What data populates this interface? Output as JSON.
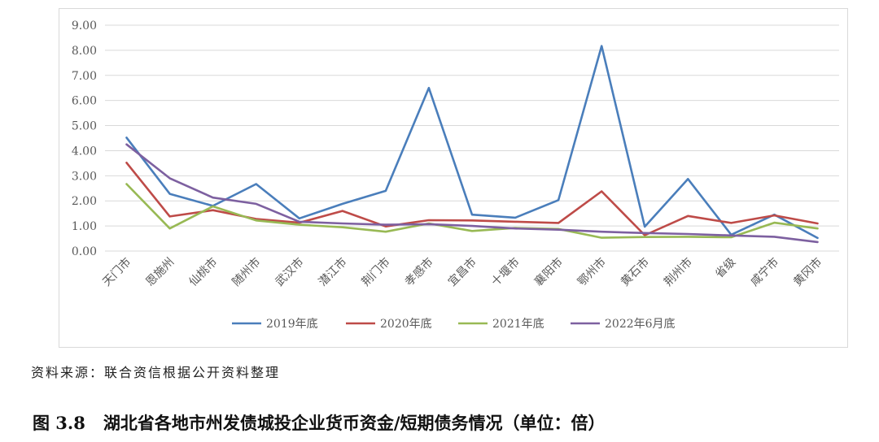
{
  "source_note": "资料来源：联合资信根据公开资料整理",
  "caption": {
    "number": "图 3.8",
    "text": "湖北省各地市州发债城投企业货币资金/短期债务情况（单位：倍）"
  },
  "chart_data": {
    "type": "line",
    "title": "",
    "xlabel": "",
    "ylabel": "",
    "ylim": [
      0,
      9
    ],
    "y_ticks": [
      "0.00",
      "1.00",
      "2.00",
      "3.00",
      "4.00",
      "5.00",
      "6.00",
      "7.00",
      "8.00",
      "9.00"
    ],
    "grid": true,
    "legend_position": "bottom",
    "categories": [
      "天门市",
      "恩施州",
      "仙桃市",
      "随州市",
      "武汉市",
      "潜江市",
      "荆门市",
      "孝感市",
      "宜昌市",
      "十堰市",
      "襄阳市",
      "鄂州市",
      "黄石市",
      "荆州市",
      "省级",
      "咸宁市",
      "黄冈市"
    ],
    "series": [
      {
        "name": "2019年底",
        "color": "#4a7ebb",
        "values": [
          4.52,
          2.28,
          1.8,
          2.67,
          1.3,
          1.88,
          2.4,
          6.5,
          1.45,
          1.33,
          2.03,
          8.17,
          0.97,
          2.87,
          0.65,
          1.45,
          0.52
        ]
      },
      {
        "name": "2020年底",
        "color": "#be4b48",
        "values": [
          3.52,
          1.38,
          1.63,
          1.28,
          1.13,
          1.6,
          0.98,
          1.23,
          1.22,
          1.17,
          1.12,
          2.38,
          0.63,
          1.4,
          1.12,
          1.42,
          1.1
        ]
      },
      {
        "name": "2021年底",
        "color": "#98b954",
        "values": [
          2.67,
          0.9,
          1.78,
          1.22,
          1.05,
          0.95,
          0.77,
          1.1,
          0.8,
          0.92,
          0.88,
          0.53,
          0.56,
          0.57,
          0.55,
          1.13,
          0.9
        ]
      },
      {
        "name": "2022年6月底",
        "color": "#7d60a0",
        "values": [
          4.25,
          2.9,
          2.13,
          1.88,
          1.17,
          1.1,
          1.05,
          1.07,
          1.0,
          0.9,
          0.85,
          0.77,
          0.72,
          0.68,
          0.62,
          0.57,
          0.36
        ]
      }
    ]
  }
}
